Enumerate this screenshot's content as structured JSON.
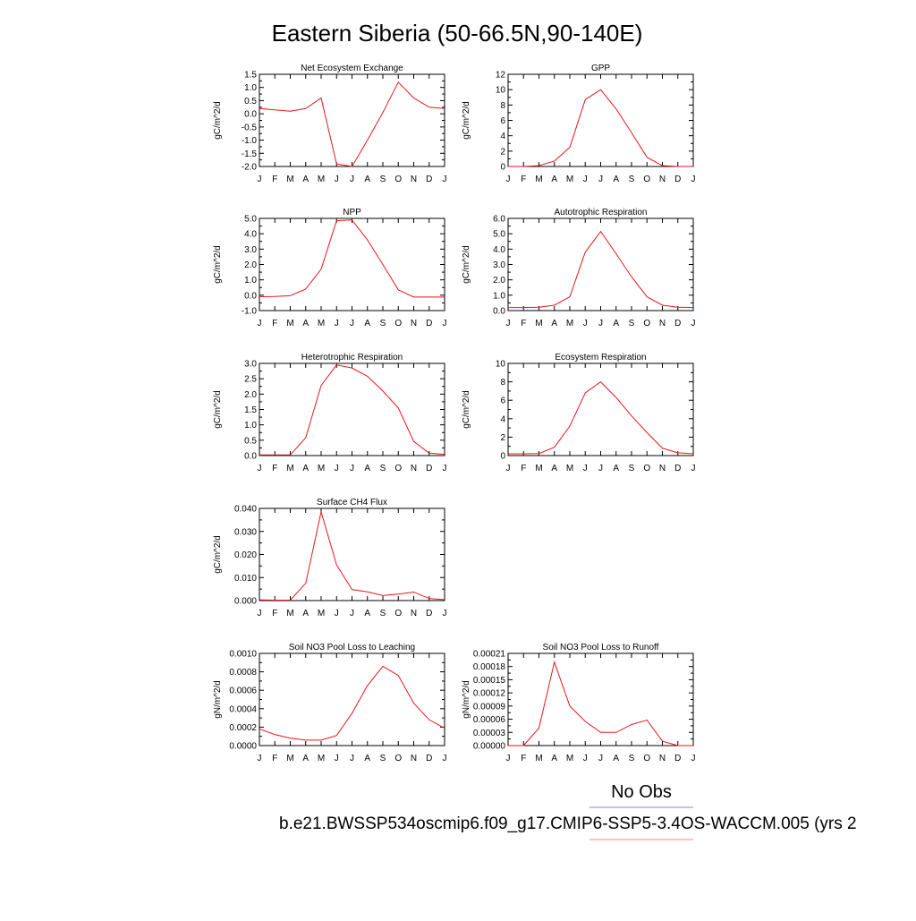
{
  "figure": {
    "title": "Eastern Siberia (50-66.5N,90-140E)",
    "legend": [
      {
        "label": "No Obs",
        "color": "#8080ff"
      },
      {
        "label": "b.e21.BWSSP534oscmip6.f09_g17.CMIP6-SSP5-3.4OS-WACCM.005 (yrs 2",
        "color": "#ff8080"
      }
    ]
  },
  "colors": {
    "series": "#e8141c",
    "axis": "#000000"
  },
  "chart_data": [
    {
      "type": "line",
      "title": "Net Ecosystem Exchange",
      "ylabel": "gC/m^2/d",
      "categories": [
        "J",
        "F",
        "M",
        "A",
        "M",
        "J",
        "J",
        "A",
        "S",
        "O",
        "N",
        "D",
        "J"
      ],
      "ylim": [
        -2.0,
        1.5
      ],
      "yticks": [
        "1.5",
        "1.0",
        "0.5",
        "0.0",
        "-0.5",
        "-1.0",
        "-1.5",
        "-2.0"
      ],
      "ytick_values": [
        1.5,
        1.0,
        0.5,
        0.0,
        -0.5,
        -1.0,
        -1.5,
        -2.0
      ],
      "values": [
        0.2,
        0.15,
        0.1,
        0.2,
        0.6,
        -1.9,
        -2.0,
        -1.0,
        0.05,
        1.2,
        0.6,
        0.25,
        0.2
      ]
    },
    {
      "type": "line",
      "title": "GPP",
      "ylabel": "gC/m^2/d",
      "categories": [
        "J",
        "F",
        "M",
        "A",
        "M",
        "J",
        "J",
        "A",
        "S",
        "O",
        "N",
        "D",
        "J"
      ],
      "ylim": [
        0,
        12
      ],
      "yticks": [
        "12",
        "10",
        "8",
        "6",
        "4",
        "2",
        "0"
      ],
      "ytick_values": [
        12,
        10,
        8,
        6,
        4,
        2,
        0
      ],
      "values": [
        0.0,
        0.0,
        0.1,
        0.7,
        2.5,
        8.7,
        10.0,
        7.5,
        4.4,
        1.2,
        0.1,
        0.0,
        0.0
      ]
    },
    {
      "type": "line",
      "title": "NPP",
      "ylabel": "gC/m^2/d",
      "categories": [
        "J",
        "F",
        "M",
        "A",
        "M",
        "J",
        "J",
        "A",
        "S",
        "O",
        "N",
        "D",
        "J"
      ],
      "ylim": [
        -1.0,
        5.0
      ],
      "yticks": [
        "5.0",
        "4.0",
        "3.0",
        "2.0",
        "1.0",
        "0.0",
        "-1.0"
      ],
      "ytick_values": [
        5.0,
        4.0,
        3.0,
        2.0,
        1.0,
        0.0,
        -1.0
      ],
      "values": [
        -0.1,
        -0.08,
        -0.03,
        0.4,
        1.7,
        4.85,
        4.9,
        3.6,
        2.0,
        0.35,
        -0.12,
        -0.12,
        -0.12
      ]
    },
    {
      "type": "line",
      "title": "Autotrophic Respiration",
      "ylabel": "gC/m^2/d",
      "categories": [
        "J",
        "F",
        "M",
        "A",
        "M",
        "J",
        "J",
        "A",
        "S",
        "O",
        "N",
        "D",
        "J"
      ],
      "ylim": [
        0.0,
        6.0
      ],
      "yticks": [
        "6.0",
        "5.0",
        "4.0",
        "3.0",
        "2.0",
        "1.0",
        "0.0"
      ],
      "ytick_values": [
        6.0,
        5.0,
        4.0,
        3.0,
        2.0,
        1.0,
        0.0
      ],
      "values": [
        0.2,
        0.2,
        0.22,
        0.35,
        0.9,
        3.8,
        5.15,
        3.7,
        2.2,
        0.9,
        0.35,
        0.22,
        0.2
      ]
    },
    {
      "type": "line",
      "title": "Heterotrophic Respiration",
      "ylabel": "gC/m^2/d",
      "categories": [
        "J",
        "F",
        "M",
        "A",
        "M",
        "J",
        "J",
        "A",
        "S",
        "O",
        "N",
        "D",
        "J"
      ],
      "ylim": [
        0.0,
        3.0
      ],
      "yticks": [
        "3.0",
        "2.5",
        "2.0",
        "1.5",
        "1.0",
        "0.5",
        "0.0"
      ],
      "ytick_values": [
        3.0,
        2.5,
        2.0,
        1.5,
        1.0,
        0.5,
        0.0
      ],
      "values": [
        0.02,
        0.02,
        0.02,
        0.58,
        2.28,
        2.95,
        2.85,
        2.58,
        2.1,
        1.55,
        0.46,
        0.08,
        0.04
      ]
    },
    {
      "type": "line",
      "title": "Ecosystem Respiration",
      "ylabel": "gC/m^2/d",
      "categories": [
        "J",
        "F",
        "M",
        "A",
        "M",
        "J",
        "J",
        "A",
        "S",
        "O",
        "N",
        "D",
        "J"
      ],
      "ylim": [
        0,
        10
      ],
      "yticks": [
        "10",
        "8",
        "6",
        "4",
        "2",
        "0"
      ],
      "ytick_values": [
        10,
        8,
        6,
        4,
        2,
        0
      ],
      "values": [
        0.2,
        0.2,
        0.22,
        0.9,
        3.2,
        6.8,
        8.0,
        6.3,
        4.3,
        2.5,
        0.8,
        0.3,
        0.2
      ]
    },
    {
      "type": "line",
      "title": "Surface CH4 Flux",
      "ylabel": "gC/m^2/d",
      "categories": [
        "J",
        "F",
        "M",
        "A",
        "M",
        "J",
        "J",
        "A",
        "S",
        "O",
        "N",
        "D",
        "J"
      ],
      "ylim": [
        0.0,
        0.04
      ],
      "yticks": [
        "0.040",
        "0.030",
        "0.020",
        "0.010",
        "0.000"
      ],
      "ytick_values": [
        0.04,
        0.03,
        0.02,
        0.01,
        0.0
      ],
      "values": [
        0.0003,
        0.0002,
        0.0002,
        0.0075,
        0.0385,
        0.0155,
        0.0048,
        0.0038,
        0.0022,
        0.0028,
        0.0037,
        0.0009,
        0.0004
      ]
    },
    {
      "type": "line",
      "title": "Soil NO3 Pool Loss to Leaching",
      "ylabel": "gN/m^2/d",
      "categories": [
        "J",
        "F",
        "M",
        "A",
        "M",
        "J",
        "J",
        "A",
        "S",
        "O",
        "N",
        "D",
        "J"
      ],
      "ylim": [
        0.0,
        0.001
      ],
      "yticks": [
        "0.0010",
        "0.0008",
        "0.0006",
        "0.0004",
        "0.0002",
        "0.0000"
      ],
      "ytick_values": [
        0.001,
        0.0008,
        0.0006,
        0.0004,
        0.0002,
        0.0
      ],
      "values": [
        0.00018,
        0.00012,
        8e-05,
        6e-05,
        6e-05,
        0.00011,
        0.00035,
        0.00065,
        0.00086,
        0.00076,
        0.00046,
        0.00028,
        0.00019
      ]
    },
    {
      "type": "line",
      "title": "Soil NO3 Pool Loss to Runoff",
      "ylabel": "gN/m^2/d",
      "categories": [
        "J",
        "F",
        "M",
        "A",
        "M",
        "J",
        "J",
        "A",
        "S",
        "O",
        "N",
        "D",
        "J"
      ],
      "ylim": [
        0.0,
        0.00021
      ],
      "yticks": [
        "0.00021",
        "0.00018",
        "0.00015",
        "0.00012",
        "0.00009",
        "0.00006",
        "0.00003",
        "0.00000"
      ],
      "ytick_values": [
        0.00021,
        0.00018,
        0.00015,
        0.00012,
        9e-05,
        6e-05,
        3e-05,
        0.0
      ],
      "values": [
        0.0,
        0.0,
        4e-05,
        0.00019,
        9e-05,
        5.5e-05,
        3e-05,
        3e-05,
        4.8e-05,
        5.8e-05,
        1e-05,
        0.0,
        0.0
      ]
    }
  ]
}
